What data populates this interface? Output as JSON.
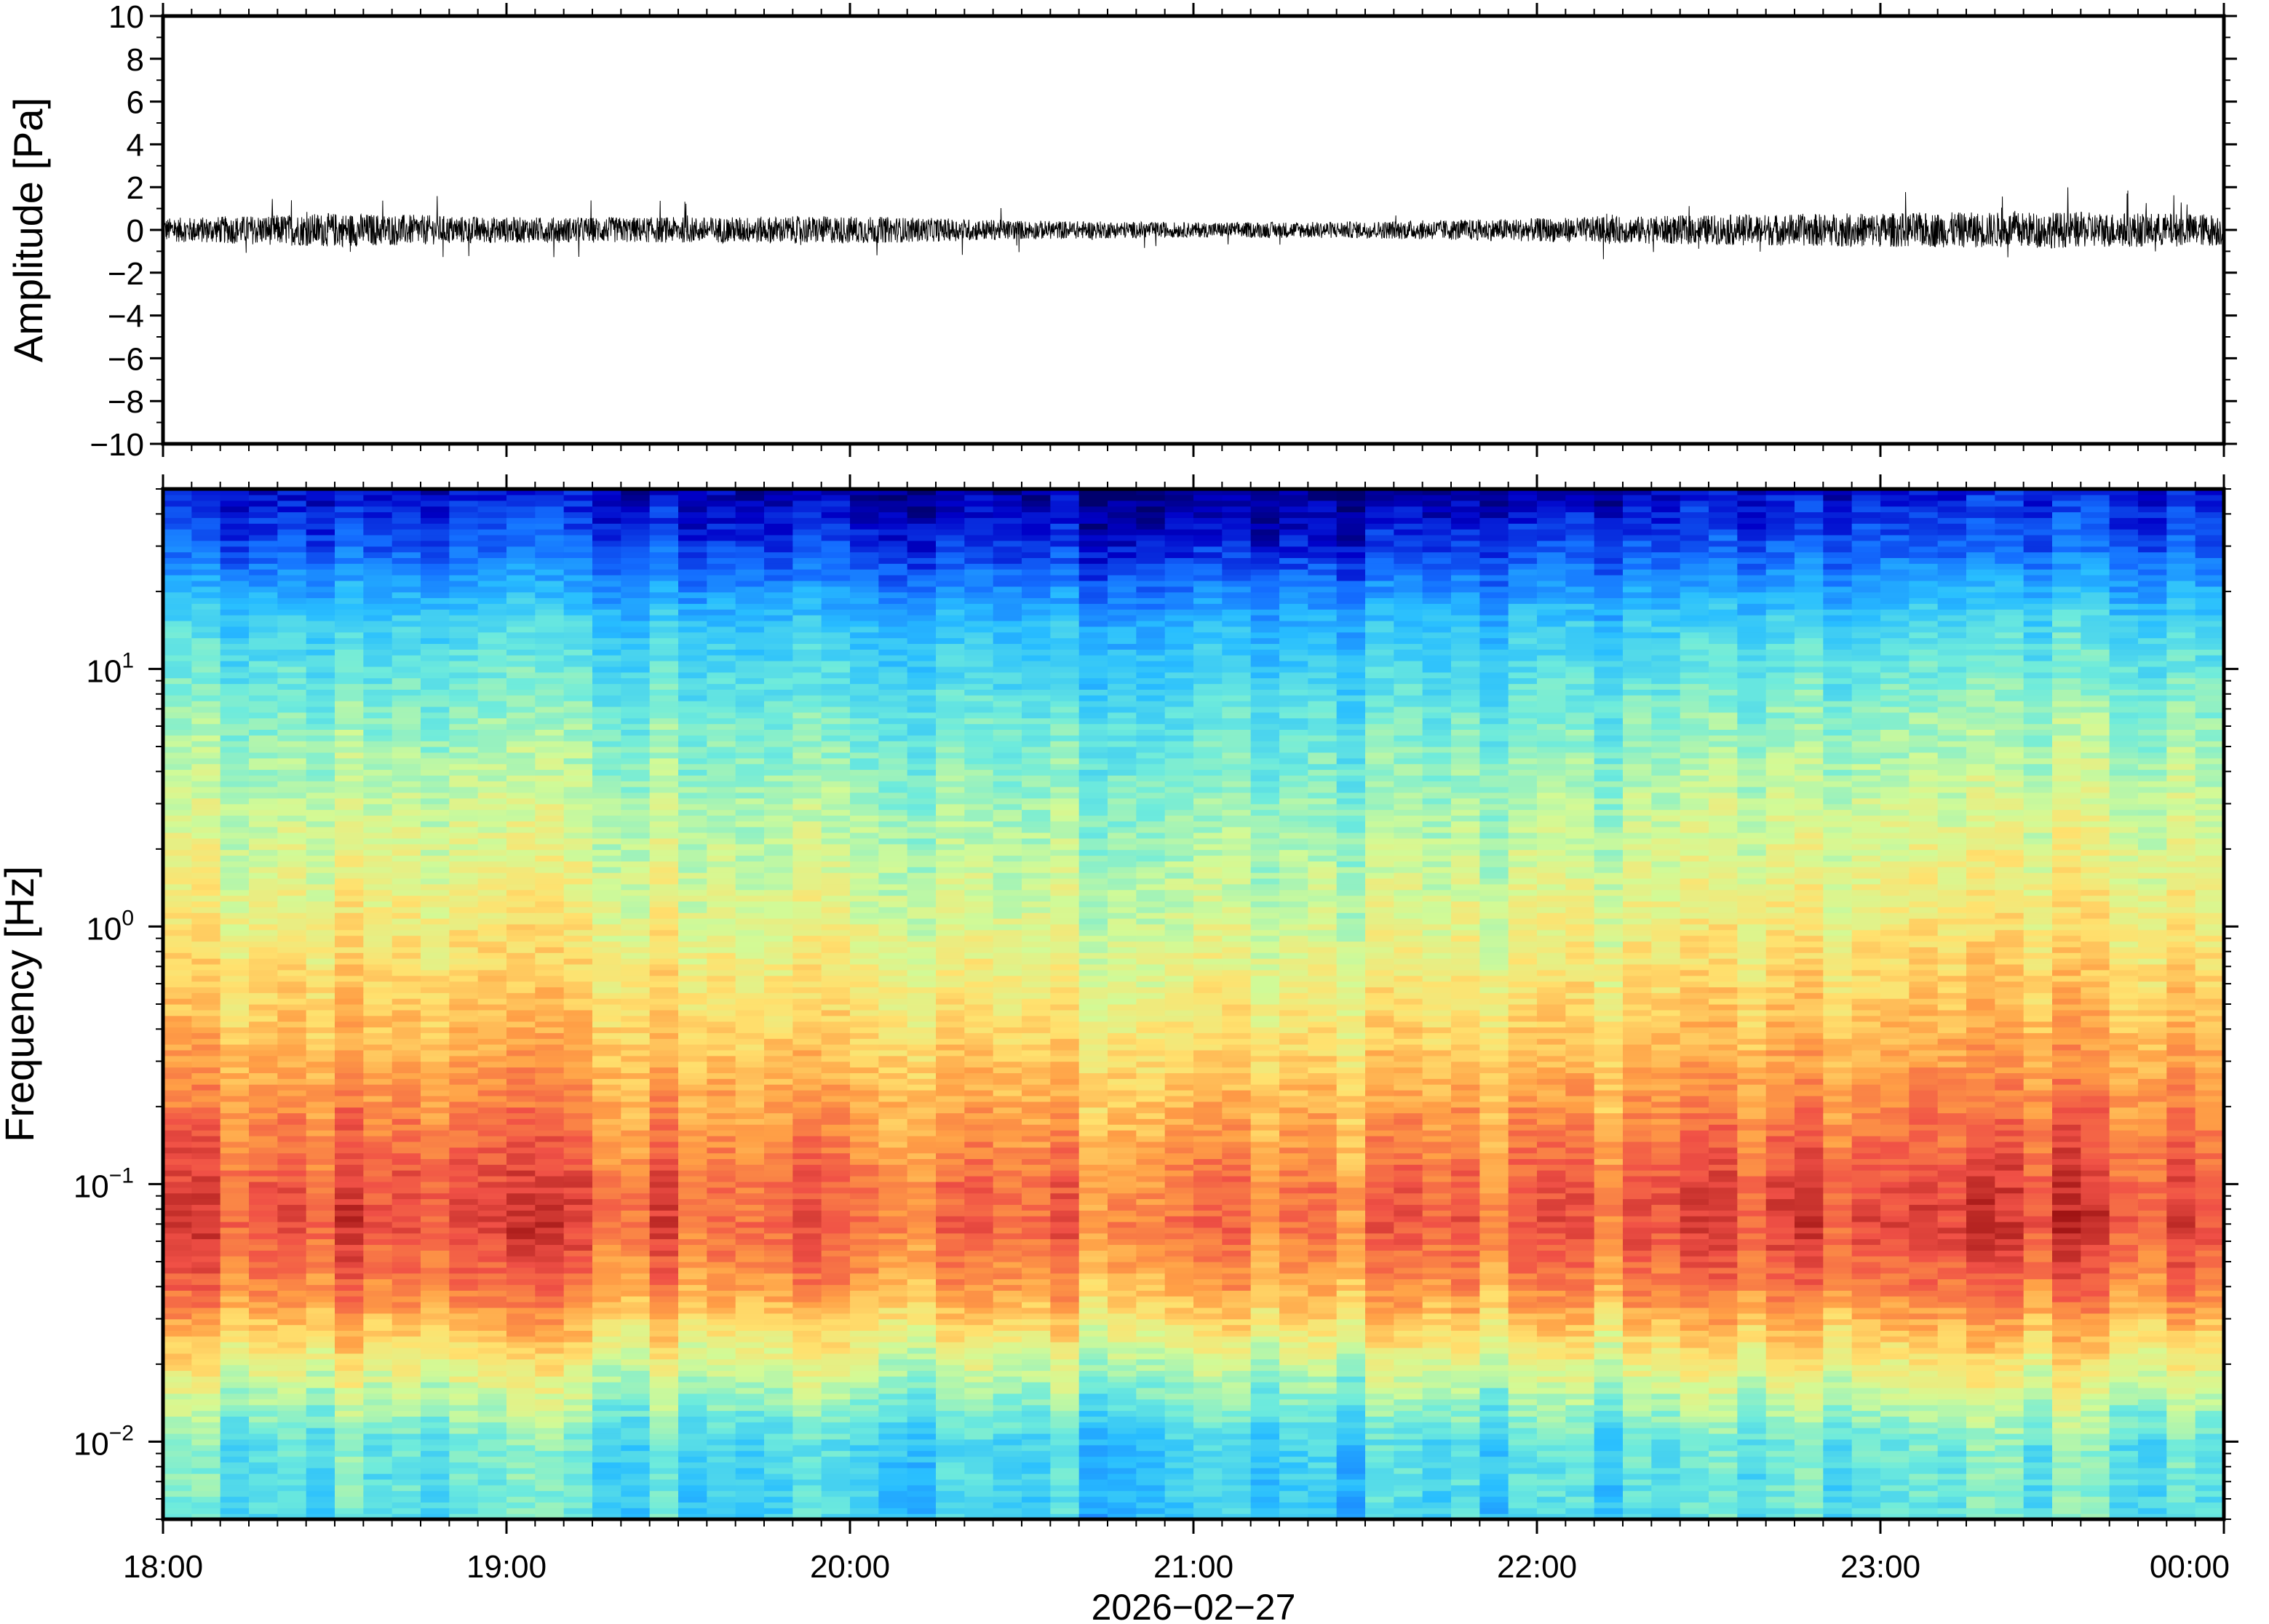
{
  "chart_data": [
    {
      "type": "line",
      "ylabel": "Amplitude [Pa]",
      "ylim": [
        -10,
        10
      ],
      "yticks": [
        "10",
        "8",
        "6",
        "4",
        "2",
        "0",
        "−2",
        "−4",
        "−6",
        "−8",
        "−10"
      ],
      "ytick_values": [
        10,
        8,
        6,
        4,
        2,
        0,
        -2,
        -4,
        -6,
        -8,
        -10
      ],
      "xlim": [
        "18:00",
        "00:00"
      ],
      "signal_envelope": {
        "times_h": [
          18.0,
          18.5,
          19.0,
          19.5,
          20.0,
          20.5,
          21.0,
          21.5,
          22.0,
          22.5,
          23.0,
          23.5,
          24.0
        ],
        "amplitude_pa": [
          0.55,
          0.8,
          0.6,
          0.6,
          0.65,
          0.45,
          0.35,
          0.4,
          0.55,
          0.7,
          0.8,
          0.85,
          0.75
        ]
      },
      "color": "#000000"
    },
    {
      "type": "heatmap",
      "ylabel": "Frequency [Hz]",
      "yscale": "log",
      "ylim": [
        0.005,
        50
      ],
      "yticks": [
        {
          "base": "10",
          "exp": "−2",
          "value": 0.01
        },
        {
          "base": "10",
          "exp": "−1",
          "value": 0.1
        },
        {
          "base": "10",
          "exp": "0",
          "value": 1
        },
        {
          "base": "10",
          "exp": "1",
          "value": 10
        }
      ],
      "xticks": [
        "18:00",
        "19:00",
        "20:00",
        "21:00",
        "22:00",
        "23:00",
        "00:00"
      ],
      "xtick_hours": [
        18,
        19,
        20,
        21,
        22,
        23,
        24
      ],
      "xlabel": "2026−02−27",
      "colormap": "jet",
      "power_profile": {
        "frequency_hz": [
          0.005,
          0.01,
          0.02,
          0.04,
          0.07,
          0.1,
          0.2,
          0.5,
          1,
          3,
          7,
          15,
          30,
          50
        ],
        "relative_level": [
          0.38,
          0.4,
          0.58,
          0.78,
          0.86,
          0.84,
          0.76,
          0.66,
          0.6,
          0.52,
          0.44,
          0.34,
          0.15,
          0.06
        ]
      },
      "time_variation": {
        "hours": [
          18,
          19,
          20,
          21,
          22,
          23,
          24
        ],
        "offset": [
          0.02,
          0.03,
          0.0,
          -0.05,
          -0.01,
          0.04,
          0.05
        ]
      }
    }
  ]
}
